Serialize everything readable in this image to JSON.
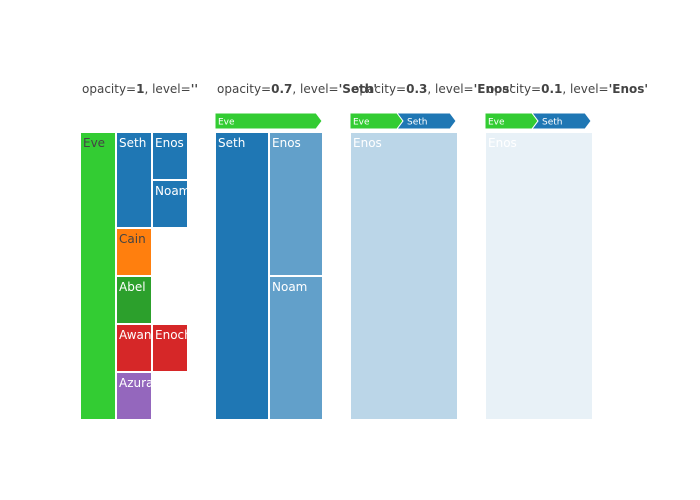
{
  "chart_data": {
    "type": "treemap",
    "colors": {
      "Eve": "#33cc33",
      "Seth": "#1f77b4",
      "Enos": "#1f77b4",
      "Noam": "#1f77b4",
      "Cain": "#ff7f0e",
      "Abel": "#2ca02c",
      "Awan": "#d62728",
      "Enoch": "#d62728",
      "Azura": "#9467bd"
    },
    "panels": [
      {
        "title_prefix": "opacity=",
        "opacity": "1",
        "title_mid": ", level=",
        "level": "''",
        "pathbar": [],
        "cells": [
          {
            "label": "Eve"
          },
          {
            "label": "Seth"
          },
          {
            "label": "Enos"
          },
          {
            "label": "Noam"
          },
          {
            "label": "Cain"
          },
          {
            "label": "Abel"
          },
          {
            "label": "Awan"
          },
          {
            "label": "Enoch"
          },
          {
            "label": "Azura"
          }
        ]
      },
      {
        "title_prefix": "opacity=",
        "opacity": "0.7",
        "title_mid": ", level=",
        "level": "'Seth'",
        "pathbar": [
          "Eve"
        ],
        "cells": [
          {
            "label": "Seth"
          },
          {
            "label": "Enos"
          },
          {
            "label": "Noam"
          }
        ]
      },
      {
        "title_prefix": "opacity=",
        "opacity": "0.3",
        "title_mid": ", level=",
        "level": "'Enos'",
        "pathbar": [
          "Eve",
          "Seth"
        ],
        "cells": [
          {
            "label": "Enos"
          }
        ]
      },
      {
        "title_prefix": "opacity=",
        "opacity": "0.1",
        "title_mid": ", level=",
        "level": "'Enos'",
        "pathbar": [
          "Eve",
          "Seth"
        ],
        "cells": [
          {
            "label": "Enos"
          }
        ]
      }
    ]
  }
}
